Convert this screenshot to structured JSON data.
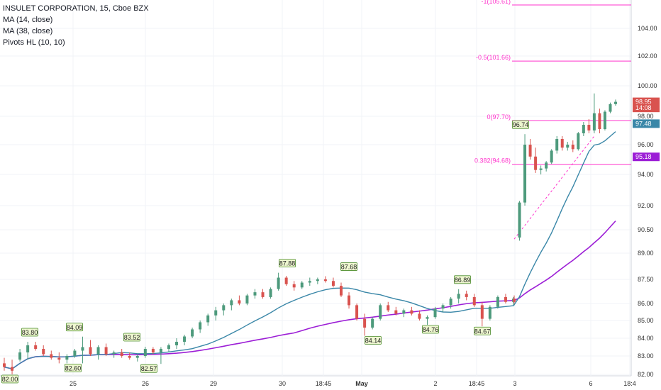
{
  "legend": {
    "title": "INSULET CORPORATION, 15, Cboe BZX",
    "ma14": "MA (14, close)",
    "ma38": "MA (38, close)",
    "pivots": "Pivots HL (10, 10)"
  },
  "colors": {
    "up": "#4d9a7c",
    "down": "#d9534f",
    "ma14": "#3a87a8",
    "ma38": "#9c1ed6",
    "fib": "#ff33cc",
    "pivot_bg": "#eef7d0",
    "pivot_border": "#4a8a2a",
    "grid": "#f0f3f7"
  },
  "chart_data": {
    "type": "candlestick",
    "y_axis": {
      "ticks": [
        82.0,
        83.0,
        84.0,
        85.0,
        86.0,
        87.5,
        89.0,
        90.5,
        92.0,
        94.0,
        96.0,
        98.0,
        100.0,
        102.0,
        104.0
      ],
      "tick_labels": [
        "82.00",
        "83.00",
        "84.00",
        "85.00",
        "86.00",
        "87.50",
        "89.00",
        "90.50",
        "92.00",
        "94.00",
        "96.00",
        "98.00",
        "100.00",
        "102.00",
        "104.00"
      ]
    },
    "x_axis": {
      "tick_labels": [
        "25",
        "26",
        "29",
        "30",
        "18:45",
        "May",
        "2",
        "18:45",
        "3",
        "6",
        "18:4"
      ]
    },
    "price_tags": [
      {
        "label": "98.95",
        "value": 98.95,
        "color": "#d9534f"
      },
      {
        "label": "14:08",
        "value": 98.55,
        "color": "#d9534f"
      },
      {
        "label": "97.48",
        "value": 97.48,
        "color": "#3a87a8"
      },
      {
        "label": "95.18",
        "value": 95.18,
        "color": "#9c1ed6"
      }
    ],
    "fib_levels": [
      {
        "label": "-1(105.61)",
        "value": 105.61
      },
      {
        "label": "-0.5(101.66)",
        "value": 101.66
      },
      {
        "label": "0(97.70)",
        "value": 97.7
      },
      {
        "label": "0.382(94.68)",
        "value": 94.68
      }
    ],
    "pivots": [
      {
        "label": "83.80",
        "value": 83.8,
        "kind": "high"
      },
      {
        "label": "84.09",
        "value": 84.09,
        "kind": "high"
      },
      {
        "label": "82.60",
        "value": 82.6,
        "kind": "low"
      },
      {
        "label": "83.52",
        "value": 83.52,
        "kind": "high"
      },
      {
        "label": "82.57",
        "value": 82.57,
        "kind": "low"
      },
      {
        "label": "87.88",
        "value": 87.88,
        "kind": "high"
      },
      {
        "label": "87.68",
        "value": 87.68,
        "kind": "high"
      },
      {
        "label": "84.14",
        "value": 84.14,
        "kind": "low"
      },
      {
        "label": "84.76",
        "value": 84.76,
        "kind": "low"
      },
      {
        "label": "86.89",
        "value": 86.89,
        "kind": "high"
      },
      {
        "label": "84.67",
        "value": 84.67,
        "kind": "low"
      },
      {
        "label": "96.74",
        "value": 96.74,
        "kind": "high"
      },
      {
        "label": "82.00",
        "value": 82.0,
        "kind": "low"
      }
    ],
    "candles": [
      {
        "o": 82.6,
        "h": 82.9,
        "l": 82.2,
        "c": 82.4
      },
      {
        "o": 82.4,
        "h": 82.8,
        "l": 82.0,
        "c": 82.2
      },
      {
        "o": 82.8,
        "h": 83.4,
        "l": 82.7,
        "c": 83.2
      },
      {
        "o": 83.2,
        "h": 83.8,
        "l": 82.8,
        "c": 83.6
      },
      {
        "o": 83.6,
        "h": 83.8,
        "l": 83.3,
        "c": 83.4
      },
      {
        "o": 83.4,
        "h": 83.6,
        "l": 83.0,
        "c": 83.1
      },
      {
        "o": 83.1,
        "h": 83.3,
        "l": 82.8,
        "c": 82.9
      },
      {
        "o": 82.9,
        "h": 83.2,
        "l": 82.6,
        "c": 82.8
      },
      {
        "o": 82.8,
        "h": 83.1,
        "l": 82.6,
        "c": 83.0
      },
      {
        "o": 83.0,
        "h": 83.4,
        "l": 82.9,
        "c": 83.3
      },
      {
        "o": 83.3,
        "h": 84.09,
        "l": 82.6,
        "c": 83.5
      },
      {
        "o": 83.5,
        "h": 83.9,
        "l": 83.0,
        "c": 83.1
      },
      {
        "o": 83.1,
        "h": 83.6,
        "l": 82.8,
        "c": 83.5
      },
      {
        "o": 83.5,
        "h": 83.7,
        "l": 83.0,
        "c": 83.1
      },
      {
        "o": 83.1,
        "h": 83.3,
        "l": 82.9,
        "c": 83.2
      },
      {
        "o": 83.2,
        "h": 83.4,
        "l": 82.9,
        "c": 83.0
      },
      {
        "o": 83.0,
        "h": 83.2,
        "l": 82.8,
        "c": 82.9
      },
      {
        "o": 82.9,
        "h": 83.1,
        "l": 82.7,
        "c": 83.0
      },
      {
        "o": 83.0,
        "h": 83.52,
        "l": 82.9,
        "c": 83.4
      },
      {
        "o": 83.4,
        "h": 83.5,
        "l": 83.1,
        "c": 83.2
      },
      {
        "o": 83.2,
        "h": 83.5,
        "l": 82.57,
        "c": 83.4
      },
      {
        "o": 83.4,
        "h": 83.7,
        "l": 83.2,
        "c": 83.6
      },
      {
        "o": 83.6,
        "h": 84.0,
        "l": 83.4,
        "c": 83.8
      },
      {
        "o": 83.8,
        "h": 84.2,
        "l": 83.6,
        "c": 84.1
      },
      {
        "o": 84.1,
        "h": 84.6,
        "l": 84.0,
        "c": 84.5
      },
      {
        "o": 84.5,
        "h": 85.0,
        "l": 84.3,
        "c": 84.9
      },
      {
        "o": 84.9,
        "h": 85.4,
        "l": 84.7,
        "c": 85.3
      },
      {
        "o": 85.3,
        "h": 85.8,
        "l": 85.0,
        "c": 85.6
      },
      {
        "o": 85.6,
        "h": 86.0,
        "l": 85.3,
        "c": 85.9
      },
      {
        "o": 85.9,
        "h": 86.3,
        "l": 85.6,
        "c": 86.2
      },
      {
        "o": 86.2,
        "h": 86.5,
        "l": 85.9,
        "c": 86.0
      },
      {
        "o": 86.0,
        "h": 86.6,
        "l": 85.9,
        "c": 86.5
      },
      {
        "o": 86.5,
        "h": 86.9,
        "l": 86.3,
        "c": 86.7
      },
      {
        "o": 86.7,
        "h": 86.9,
        "l": 86.3,
        "c": 86.4
      },
      {
        "o": 86.4,
        "h": 87.0,
        "l": 86.3,
        "c": 86.9
      },
      {
        "o": 86.9,
        "h": 87.88,
        "l": 86.8,
        "c": 87.6
      },
      {
        "o": 87.6,
        "h": 87.7,
        "l": 87.1,
        "c": 87.2
      },
      {
        "o": 87.2,
        "h": 87.4,
        "l": 86.8,
        "c": 87.0
      },
      {
        "o": 87.0,
        "h": 87.4,
        "l": 86.9,
        "c": 87.3
      },
      {
        "o": 87.3,
        "h": 87.6,
        "l": 87.1,
        "c": 87.4
      },
      {
        "o": 87.4,
        "h": 87.6,
        "l": 87.2,
        "c": 87.5
      },
      {
        "o": 87.5,
        "h": 87.68,
        "l": 87.3,
        "c": 87.4
      },
      {
        "o": 87.4,
        "h": 87.6,
        "l": 87.0,
        "c": 87.1
      },
      {
        "o": 87.1,
        "h": 87.3,
        "l": 86.4,
        "c": 86.5
      },
      {
        "o": 86.5,
        "h": 86.7,
        "l": 85.7,
        "c": 85.9
      },
      {
        "o": 85.9,
        "h": 86.0,
        "l": 85.0,
        "c": 85.1
      },
      {
        "o": 85.1,
        "h": 85.4,
        "l": 84.14,
        "c": 84.6
      },
      {
        "o": 84.6,
        "h": 85.2,
        "l": 84.5,
        "c": 85.1
      },
      {
        "o": 85.1,
        "h": 86.0,
        "l": 85.0,
        "c": 85.9
      },
      {
        "o": 85.9,
        "h": 86.1,
        "l": 85.5,
        "c": 85.6
      },
      {
        "o": 85.6,
        "h": 85.8,
        "l": 85.3,
        "c": 85.4
      },
      {
        "o": 85.4,
        "h": 85.7,
        "l": 85.2,
        "c": 85.6
      },
      {
        "o": 85.6,
        "h": 85.8,
        "l": 85.3,
        "c": 85.4
      },
      {
        "o": 85.4,
        "h": 85.6,
        "l": 85.0,
        "c": 85.1
      },
      {
        "o": 85.1,
        "h": 85.3,
        "l": 84.76,
        "c": 85.2
      },
      {
        "o": 85.2,
        "h": 85.8,
        "l": 85.1,
        "c": 85.7
      },
      {
        "o": 85.7,
        "h": 86.0,
        "l": 85.5,
        "c": 85.9
      },
      {
        "o": 85.9,
        "h": 86.4,
        "l": 85.7,
        "c": 86.3
      },
      {
        "o": 86.3,
        "h": 86.89,
        "l": 86.0,
        "c": 86.6
      },
      {
        "o": 86.6,
        "h": 86.8,
        "l": 86.2,
        "c": 86.4
      },
      {
        "o": 86.4,
        "h": 86.6,
        "l": 85.8,
        "c": 85.9
      },
      {
        "o": 85.9,
        "h": 86.1,
        "l": 84.67,
        "c": 85.1
      },
      {
        "o": 85.1,
        "h": 85.9,
        "l": 85.0,
        "c": 85.8
      },
      {
        "o": 85.8,
        "h": 86.5,
        "l": 85.7,
        "c": 86.4
      },
      {
        "o": 86.4,
        "h": 86.6,
        "l": 86.0,
        "c": 86.1
      },
      {
        "o": 86.1,
        "h": 86.4,
        "l": 85.9,
        "c": 86.3
      },
      {
        "o": 86.3,
        "h": 86.5,
        "l": 86.0,
        "c": 86.1
      },
      {
        "o": 90.0,
        "h": 92.3,
        "l": 89.8,
        "c": 92.2
      },
      {
        "o": 92.2,
        "h": 96.74,
        "l": 92.0,
        "c": 96.0
      },
      {
        "o": 96.0,
        "h": 96.4,
        "l": 95.0,
        "c": 95.2
      },
      {
        "o": 95.2,
        "h": 95.8,
        "l": 94.1,
        "c": 94.3
      },
      {
        "o": 94.3,
        "h": 94.6,
        "l": 94.0,
        "c": 94.4
      },
      {
        "o": 94.4,
        "h": 94.9,
        "l": 94.2,
        "c": 94.8
      },
      {
        "o": 94.8,
        "h": 95.7,
        "l": 94.7,
        "c": 95.6
      },
      {
        "o": 95.6,
        "h": 96.6,
        "l": 95.4,
        "c": 96.4
      },
      {
        "o": 96.4,
        "h": 96.6,
        "l": 95.6,
        "c": 95.8
      },
      {
        "o": 95.8,
        "h": 96.2,
        "l": 95.6,
        "c": 96.0
      },
      {
        "o": 96.0,
        "h": 96.3,
        "l": 95.5,
        "c": 95.7
      },
      {
        "o": 95.7,
        "h": 96.9,
        "l": 95.6,
        "c": 96.8
      },
      {
        "o": 96.8,
        "h": 97.6,
        "l": 96.6,
        "c": 97.4
      },
      {
        "o": 97.4,
        "h": 97.8,
        "l": 96.8,
        "c": 97.0
      },
      {
        "o": 97.0,
        "h": 99.5,
        "l": 96.8,
        "c": 98.2
      },
      {
        "o": 98.2,
        "h": 98.5,
        "l": 96.8,
        "c": 97.1
      },
      {
        "o": 97.1,
        "h": 98.4,
        "l": 97.0,
        "c": 98.3
      },
      {
        "o": 98.3,
        "h": 98.9,
        "l": 98.2,
        "c": 98.8
      },
      {
        "o": 98.8,
        "h": 99.1,
        "l": 98.7,
        "c": 98.95
      }
    ]
  }
}
